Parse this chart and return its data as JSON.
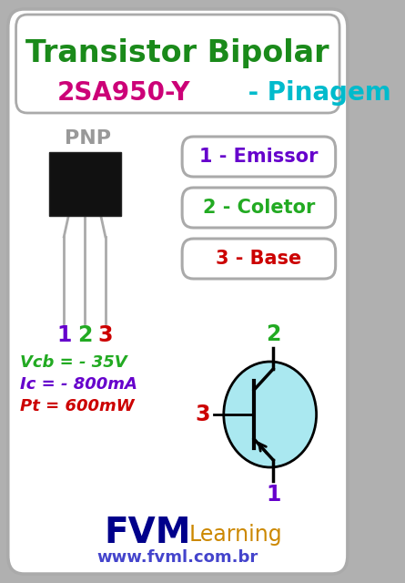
{
  "bg_color": "#f2f2f2",
  "outer_bg": "#b0b0b0",
  "title1": "Transistor Bipolar",
  "title1_color": "#1a8a1a",
  "title2a": "2SA950-Y",
  "title2a_color": "#cc0077",
  "title2b": " - Pinagem",
  "title2b_color": "#00bbcc",
  "pnp_label": "PNP",
  "pnp_color": "#999999",
  "pin_labels": [
    "1",
    "2",
    "3"
  ],
  "pin_colors": [
    "#6600cc",
    "#22aa22",
    "#cc0000"
  ],
  "pin_box_texts": [
    "1 - Emissor",
    "2 - Coletor",
    "3 - Base"
  ],
  "pin_box_colors": [
    "#6600cc",
    "#22aa22",
    "#cc0000"
  ],
  "specs": [
    "Vcb = - 35V",
    "Ic = - 800mA",
    "Pt = 600mW"
  ],
  "specs_colors": [
    "#22aa22",
    "#6600cc",
    "#cc0000"
  ],
  "schematic_pin_2_color": "#22aa22",
  "schematic_pin_3_color": "#cc0000",
  "schematic_pin_1_color": "#6600cc",
  "fvm_color": "#00008b",
  "learning_color": "#cc8800",
  "url_color": "#4444cc",
  "transistor_fill": "#aae8f0",
  "transistor_border": "#000000"
}
